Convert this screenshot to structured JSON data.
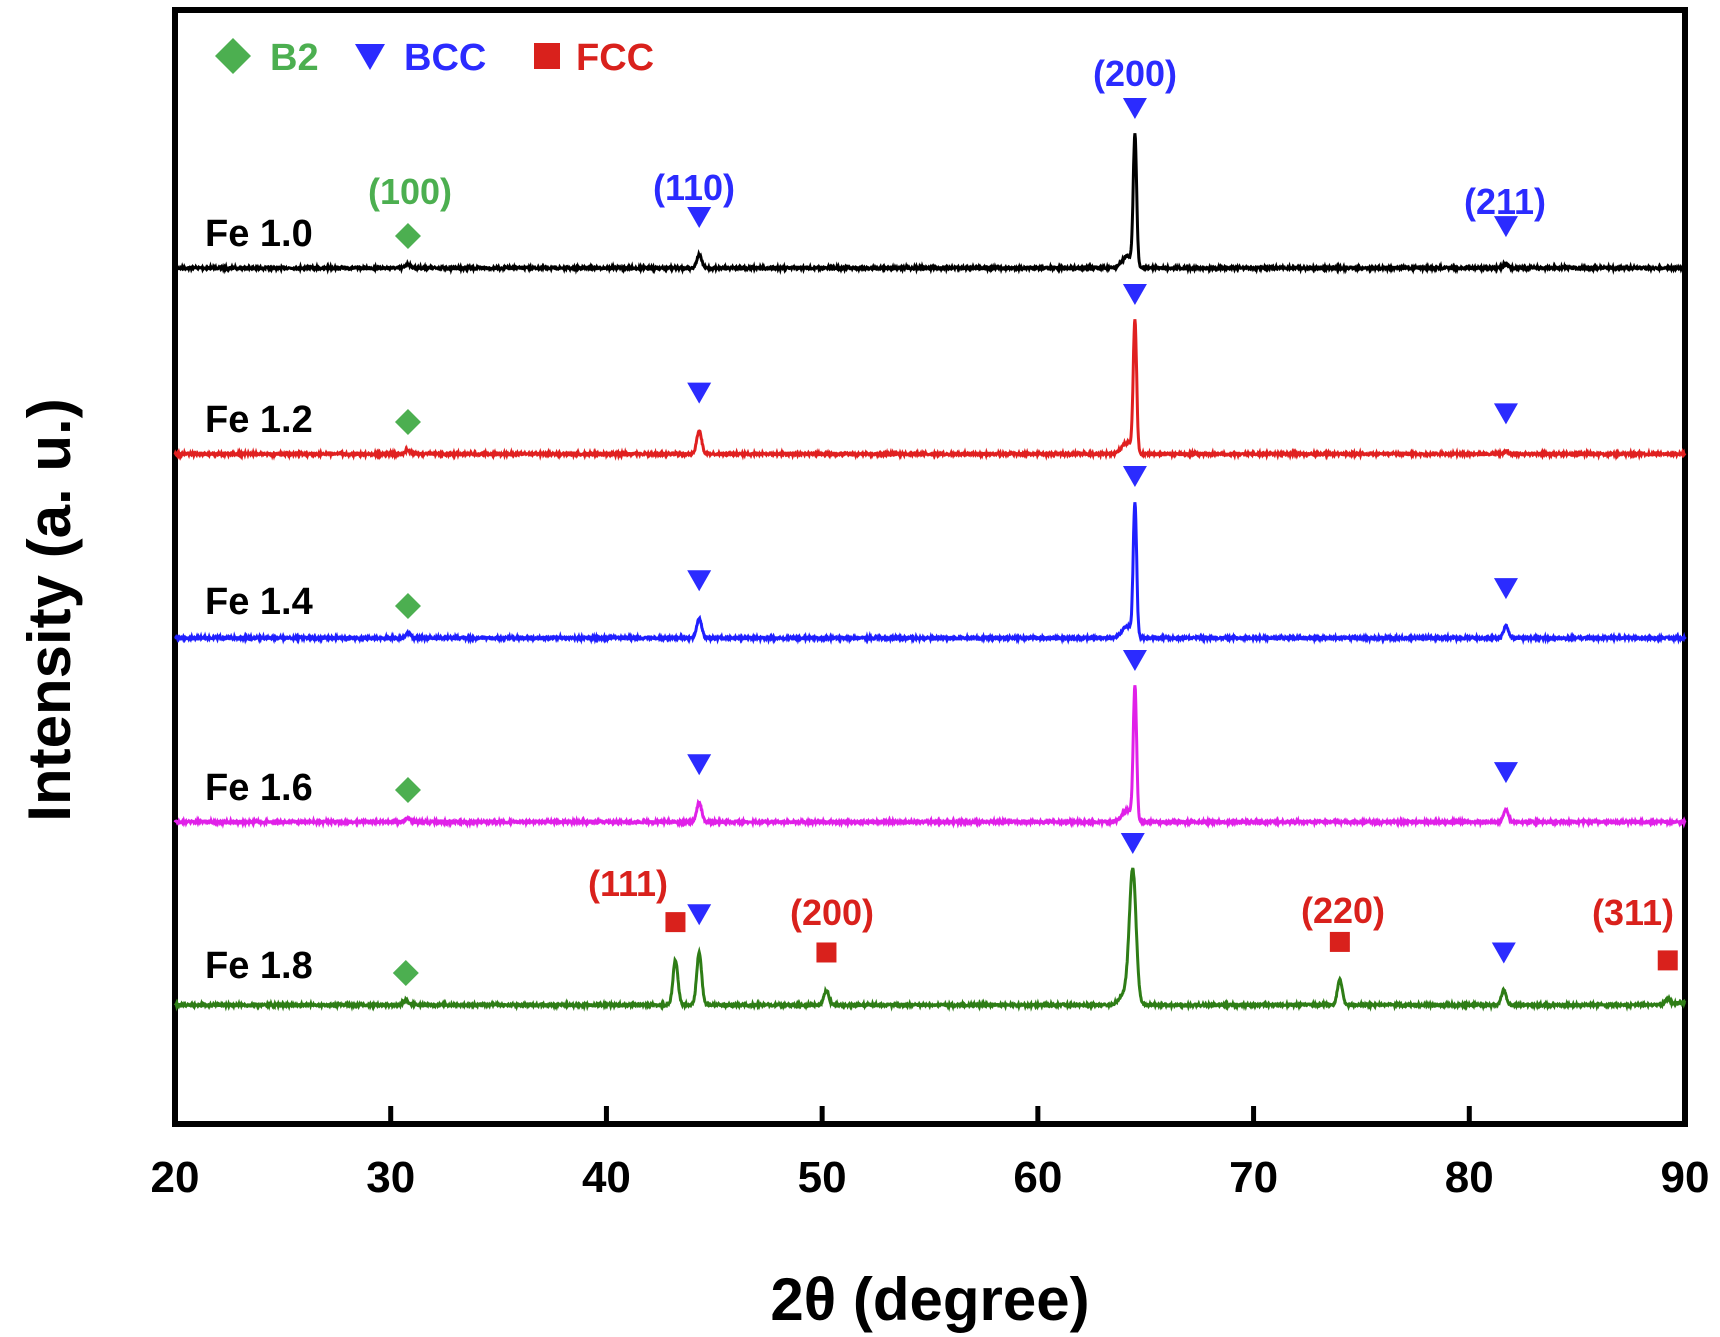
{
  "chart_data": {
    "type": "line",
    "title": "",
    "xlabel": "2θ (degree)",
    "ylabel": "Intensity (a. u.)",
    "xlim": [
      20,
      90
    ],
    "xticks": [
      "20",
      "30",
      "40",
      "50",
      "60",
      "70",
      "80",
      "90"
    ],
    "grid": false,
    "legend_position": "top-left",
    "legend": [
      {
        "label": "B2",
        "marker": "diamond",
        "color": "#4caf50"
      },
      {
        "label": "BCC",
        "marker": "triangle-down",
        "color": "#2b2bff"
      },
      {
        "label": "FCC",
        "marker": "square",
        "color": "#d9211c"
      }
    ],
    "series": [
      {
        "name": "Fe 1.0",
        "color": "#000000",
        "peaks": [
          {
            "x": 30.8,
            "h": 0.03,
            "phase": "B2"
          },
          {
            "x": 44.3,
            "h": 0.1,
            "phase": "BCC"
          },
          {
            "x": 64.5,
            "h": 1.0,
            "phase": "BCC"
          },
          {
            "x": 81.7,
            "h": 0.03,
            "phase": "BCC"
          }
        ]
      },
      {
        "name": "Fe 1.2",
        "color": "#e02020",
        "peaks": [
          {
            "x": 30.8,
            "h": 0.03,
            "phase": "B2"
          },
          {
            "x": 44.3,
            "h": 0.18,
            "phase": "BCC"
          },
          {
            "x": 64.5,
            "h": 1.0,
            "phase": "BCC"
          },
          {
            "x": 81.7,
            "h": 0.02,
            "phase": "BCC"
          }
        ]
      },
      {
        "name": "Fe 1.4",
        "color": "#1f1fff",
        "peaks": [
          {
            "x": 30.8,
            "h": 0.04,
            "phase": "B2"
          },
          {
            "x": 44.3,
            "h": 0.15,
            "phase": "BCC"
          },
          {
            "x": 64.5,
            "h": 1.0,
            "phase": "BCC"
          },
          {
            "x": 81.7,
            "h": 0.09,
            "phase": "BCC"
          }
        ]
      },
      {
        "name": "Fe 1.6",
        "color": "#e020e8",
        "peaks": [
          {
            "x": 30.8,
            "h": 0.03,
            "phase": "B2"
          },
          {
            "x": 44.3,
            "h": 0.15,
            "phase": "BCC"
          },
          {
            "x": 64.5,
            "h": 1.0,
            "phase": "BCC"
          },
          {
            "x": 81.7,
            "h": 0.09,
            "phase": "BCC"
          }
        ]
      },
      {
        "name": "Fe 1.8",
        "color": "#2e7d16",
        "peaks": [
          {
            "x": 30.7,
            "h": 0.04,
            "phase": "B2"
          },
          {
            "x": 43.2,
            "h": 0.34,
            "phase": "FCC"
          },
          {
            "x": 44.3,
            "h": 0.4,
            "phase": "BCC"
          },
          {
            "x": 50.2,
            "h": 0.11,
            "phase": "FCC"
          },
          {
            "x": 64.4,
            "h": 1.0,
            "phase": "BCC"
          },
          {
            "x": 74.0,
            "h": 0.19,
            "phase": "FCC"
          },
          {
            "x": 81.6,
            "h": 0.11,
            "phase": "BCC"
          },
          {
            "x": 89.2,
            "h": 0.05,
            "phase": "FCC"
          }
        ]
      }
    ],
    "annotations": [
      {
        "text": "(100)",
        "phase": "B2",
        "x": 30.8
      },
      {
        "text": "(110)",
        "phase": "BCC",
        "x": 44.3
      },
      {
        "text": "(200)",
        "phase": "BCC",
        "x": 64.5
      },
      {
        "text": "(211)",
        "phase": "BCC",
        "x": 81.7
      },
      {
        "text": "(111)",
        "phase": "FCC",
        "x": 43.2
      },
      {
        "text": "(200)",
        "phase": "FCC",
        "x": 50.2
      },
      {
        "text": "(220)",
        "phase": "FCC",
        "x": 74.0
      },
      {
        "text": "(311)",
        "phase": "FCC",
        "x": 89.2
      }
    ]
  }
}
